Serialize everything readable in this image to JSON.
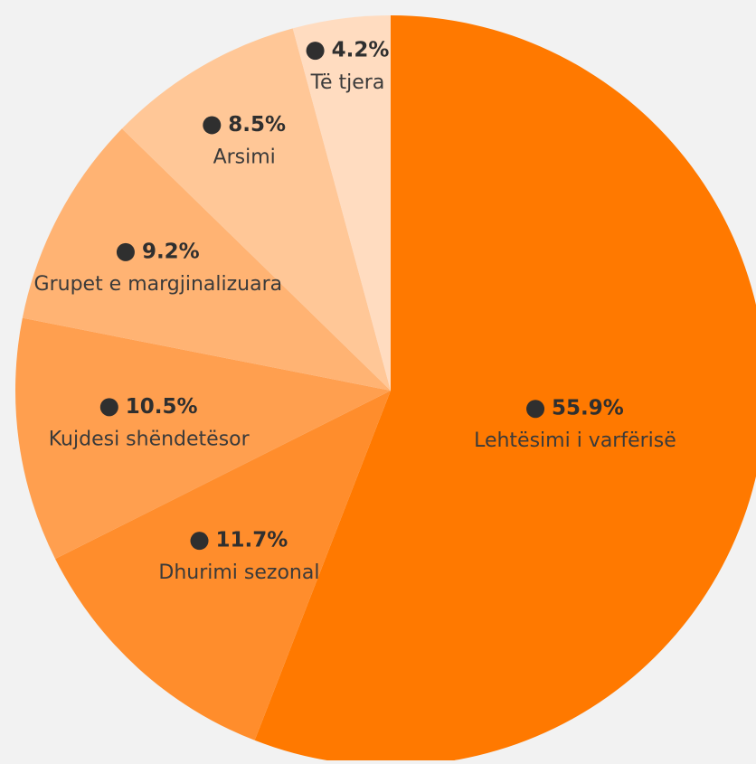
{
  "chart_data": {
    "type": "pie",
    "categories": [
      "Lehtësimi i varfërisë",
      "Dhurimi sezonal",
      "Kujdesi shëndetësor",
      "Grupet e margjinalizuara",
      "Arsimi",
      "Të tjera"
    ],
    "values": [
      55.9,
      11.7,
      10.5,
      9.2,
      8.5,
      4.2
    ],
    "value_labels": [
      "55.9%",
      "11.7%",
      "10.5%",
      "9.2%",
      "8.5%",
      "4.2%"
    ],
    "colors": [
      "#ff7900",
      "#ff8d2c",
      "#ff9f4f",
      "#ffb373",
      "#ffc797",
      "#ffdcc0"
    ]
  }
}
